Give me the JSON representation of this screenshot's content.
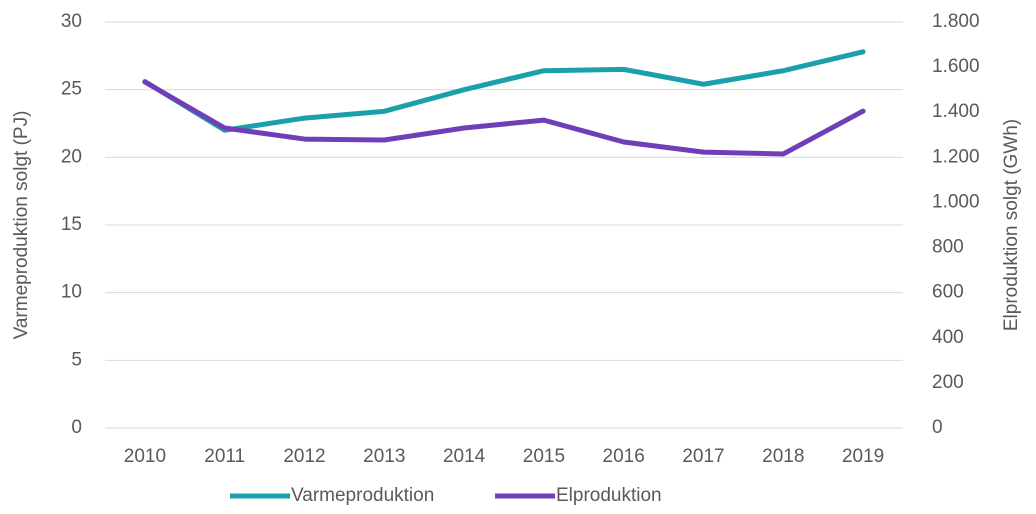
{
  "chart_data": {
    "type": "line",
    "categories": [
      "2010",
      "2011",
      "2012",
      "2013",
      "2014",
      "2015",
      "2016",
      "2017",
      "2018",
      "2019"
    ],
    "ylabel": "Varmeproduktion solgt (PJ)",
    "y2label": "Elproduktion solgt (GWh)",
    "ylim": [
      0,
      30
    ],
    "yticks": [
      0,
      5,
      10,
      15,
      20,
      25,
      30
    ],
    "y2lim": [
      0,
      1800
    ],
    "y2ticks": [
      0,
      200,
      400,
      600,
      800,
      {
        "value": 1000,
        "label": "1.000"
      },
      {
        "value": 1200,
        "label": "1.200"
      },
      {
        "value": 1400,
        "label": "1.400"
      },
      {
        "value": 1600,
        "label": "1.600"
      },
      {
        "value": 1800,
        "label": "1.800"
      }
    ],
    "grid": true,
    "legend": "bottom",
    "series": [
      {
        "name": "Varmeproduktion",
        "color": "#1aa0a8",
        "values": [
          25.6,
          22.0,
          22.9,
          23.4,
          25.0,
          26.4,
          26.5,
          25.4,
          26.4,
          27.8
        ]
      },
      {
        "name": "Elproduktion",
        "color": "#6f3fb8",
        "axis": "y2",
        "values": [
          1534,
          1330,
          1281,
          1277,
          1330,
          1365,
          1268,
          1223,
          1215,
          1405
        ]
      }
    ]
  }
}
